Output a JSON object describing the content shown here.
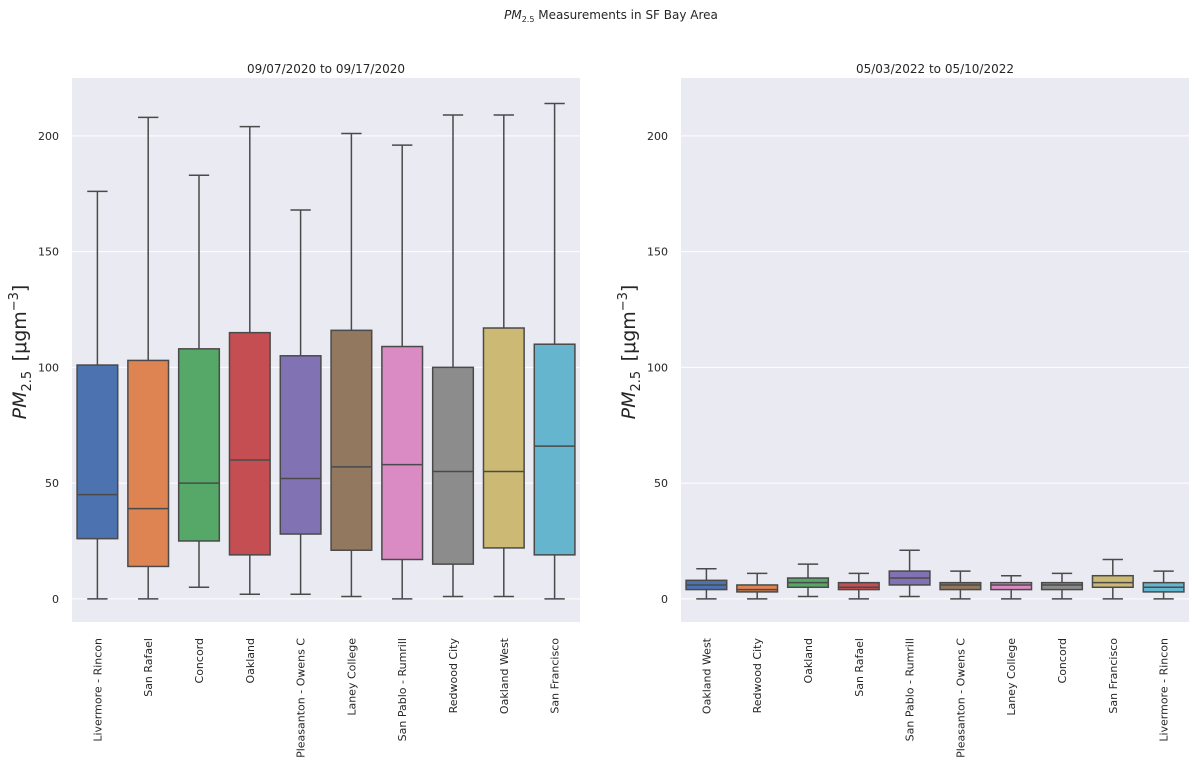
{
  "figure": {
    "suptitle_pm": "PM",
    "suptitle_sub": "2.5",
    "suptitle_rest": " Measurements in SF Bay Area"
  },
  "colors": {
    "background": "#eaeaf2",
    "grid": "#ffffff",
    "edge": "#4a4a4a",
    "palette": [
      "#4c72b0",
      "#dd8452",
      "#55a868",
      "#c44e52",
      "#8172b3",
      "#937860",
      "#da8bc3",
      "#8c8c8c",
      "#ccb974",
      "#64b5cd"
    ]
  },
  "chart_data": [
    {
      "type": "box",
      "title": "09/07/2020 to 09/17/2020",
      "ylabel": {
        "main": "PM",
        "sub": "2.5",
        "unit": "[μgm",
        "exp": "−3",
        "close": "]"
      },
      "ylim": [
        -10,
        225
      ],
      "yticks": [
        0,
        50,
        100,
        150,
        200
      ],
      "grid": true,
      "categories": [
        "Livermore - Rincon",
        "San Rafael",
        "Concord",
        "Oakland",
        "Pleasanton - Owens C",
        "Laney College",
        "San Pablo - Rumrill",
        "Redwood City",
        "Oakland West",
        "San Francisco"
      ],
      "boxes": [
        {
          "min": 0,
          "q1": 26,
          "median": 45,
          "q3": 101,
          "max": 176
        },
        {
          "min": 0,
          "q1": 14,
          "median": 39,
          "q3": 103,
          "max": 208
        },
        {
          "min": 5,
          "q1": 25,
          "median": 50,
          "q3": 108,
          "max": 183
        },
        {
          "min": 2,
          "q1": 19,
          "median": 60,
          "q3": 115,
          "max": 204
        },
        {
          "min": 2,
          "q1": 28,
          "median": 52,
          "q3": 105,
          "max": 168
        },
        {
          "min": 1,
          "q1": 21,
          "median": 57,
          "q3": 116,
          "max": 201
        },
        {
          "min": 0,
          "q1": 17,
          "median": 58,
          "q3": 109,
          "max": 196
        },
        {
          "min": 1,
          "q1": 15,
          "median": 55,
          "q3": 100,
          "max": 209
        },
        {
          "min": 1,
          "q1": 22,
          "median": 55,
          "q3": 117,
          "max": 209
        },
        {
          "min": 0,
          "q1": 19,
          "median": 66,
          "q3": 110,
          "max": 214
        }
      ],
      "color_indices": [
        0,
        1,
        2,
        3,
        4,
        5,
        6,
        7,
        8,
        9
      ]
    },
    {
      "type": "box",
      "title": "05/03/2022 to 05/10/2022",
      "ylabel": {
        "main": "PM",
        "sub": "2.5",
        "unit": "[μgm",
        "exp": "−3",
        "close": "]"
      },
      "ylim": [
        -10,
        225
      ],
      "yticks": [
        0,
        50,
        100,
        150,
        200
      ],
      "grid": true,
      "categories": [
        "Oakland West",
        "Redwood City",
        "Oakland",
        "San Rafael",
        "San Pablo - Rumrill",
        "Pleasanton - Owens C",
        "Laney College",
        "Concord",
        "San Francisco",
        "Livermore - Rincon"
      ],
      "boxes": [
        {
          "min": 0,
          "q1": 4,
          "median": 6,
          "q3": 8,
          "max": 13
        },
        {
          "min": 0,
          "q1": 3,
          "median": 4,
          "q3": 6,
          "max": 11
        },
        {
          "min": 1,
          "q1": 5,
          "median": 7,
          "q3": 9,
          "max": 15
        },
        {
          "min": 0,
          "q1": 4,
          "median": 5,
          "q3": 7,
          "max": 11
        },
        {
          "min": 1,
          "q1": 6,
          "median": 9,
          "q3": 12,
          "max": 21
        },
        {
          "min": 0,
          "q1": 4,
          "median": 6,
          "q3": 7,
          "max": 12
        },
        {
          "min": 0,
          "q1": 4,
          "median": 6,
          "q3": 7,
          "max": 10
        },
        {
          "min": 0,
          "q1": 4,
          "median": 6,
          "q3": 7,
          "max": 11
        },
        {
          "min": 0,
          "q1": 5,
          "median": 7,
          "q3": 10,
          "max": 17
        },
        {
          "min": 0,
          "q1": 3,
          "median": 5,
          "q3": 7,
          "max": 12
        }
      ],
      "color_indices": [
        0,
        1,
        2,
        3,
        4,
        5,
        6,
        7,
        8,
        9
      ]
    }
  ]
}
